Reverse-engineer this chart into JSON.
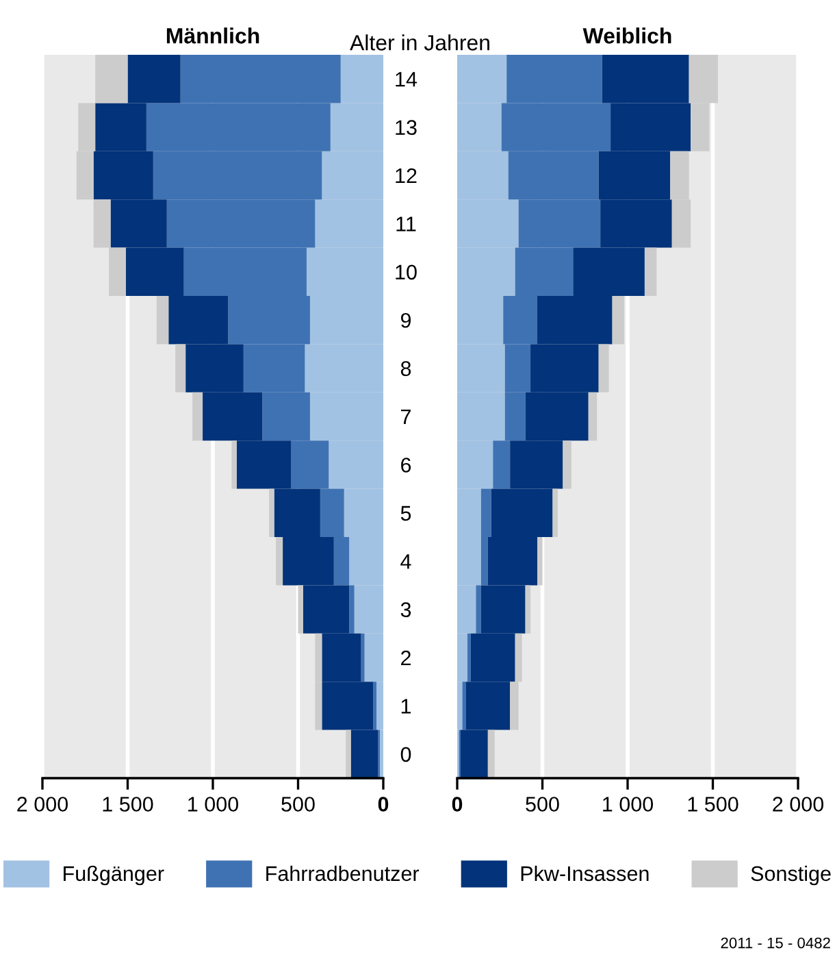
{
  "chart_data": [
    {
      "type": "bar",
      "title": "Männlich",
      "orientation": "horizontal",
      "stacked": true,
      "categories": [
        "14",
        "13",
        "12",
        "11",
        "10",
        "9",
        "8",
        "7",
        "6",
        "5",
        "4",
        "3",
        "2",
        "1",
        "0"
      ],
      "series": [
        {
          "name": "Fußgänger",
          "color": "#a2c2e3",
          "values": [
            250,
            310,
            360,
            400,
            450,
            430,
            460,
            430,
            320,
            230,
            200,
            170,
            110,
            40,
            20
          ]
        },
        {
          "name": "Fahrradbenutzer",
          "color": "#3f72b3",
          "values": [
            940,
            1080,
            990,
            870,
            720,
            480,
            360,
            280,
            220,
            140,
            90,
            30,
            20,
            20,
            10
          ]
        },
        {
          "name": "Pkw-Insassen",
          "color": "#03337a",
          "values": [
            310,
            300,
            350,
            330,
            340,
            350,
            340,
            350,
            320,
            270,
            300,
            270,
            230,
            300,
            160
          ]
        },
        {
          "name": "Sonstige",
          "color": "#cccccc",
          "values": [
            190,
            100,
            100,
            100,
            100,
            70,
            60,
            60,
            30,
            30,
            40,
            30,
            40,
            40,
            30
          ]
        }
      ],
      "xlim": [
        2000,
        0
      ],
      "xticks": [
        {
          "value": 2000,
          "label": "2 000"
        },
        {
          "value": 1500,
          "label": "1 500"
        },
        {
          "value": 1000,
          "label": "1 000"
        },
        500,
        0
      ],
      "grid": "x",
      "legend": "bottom",
      "tick_labels": "x"
    },
    {
      "type": "bar",
      "title": "Weiblich",
      "ylabel": "Alter in Jahren",
      "orientation": "horizontal",
      "stacked": true,
      "categories": [
        "14",
        "13",
        "12",
        "11",
        "10",
        "9",
        "8",
        "7",
        "6",
        "5",
        "4",
        "3",
        "2",
        "1",
        "0"
      ],
      "series": [
        {
          "color": "#a2c2e3",
          "values": [
            290,
            260,
            300,
            360,
            340,
            270,
            280,
            280,
            210,
            140,
            140,
            110,
            60,
            30,
            10
          ]
        },
        {
          "color": "#3f72b3",
          "values": [
            560,
            640,
            530,
            480,
            340,
            200,
            150,
            120,
            100,
            60,
            40,
            30,
            20,
            20,
            10
          ]
        },
        {
          "color": "#03337a",
          "values": [
            510,
            470,
            420,
            420,
            420,
            440,
            400,
            370,
            310,
            360,
            290,
            260,
            260,
            260,
            160
          ]
        },
        {
          "color": "#cccccc",
          "values": [
            170,
            110,
            110,
            110,
            70,
            70,
            60,
            50,
            50,
            30,
            30,
            30,
            40,
            50,
            40
          ]
        }
      ],
      "xlim": [
        0,
        2000
      ],
      "xticks": [
        0,
        500,
        {
          "value": 1000,
          "label": "1 000"
        },
        {
          "value": 1500,
          "label": "1 500"
        },
        {
          "value": 2000,
          "label": "2 000"
        }
      ],
      "grid": "x",
      "annotations": [
        "2011 - 15 - 0482"
      ]
    }
  ]
}
